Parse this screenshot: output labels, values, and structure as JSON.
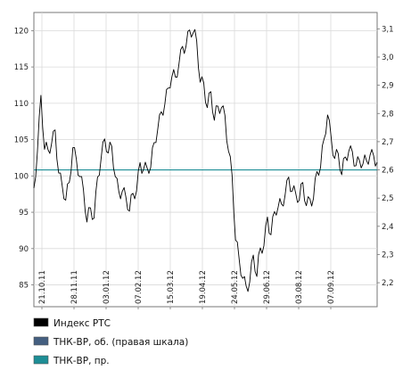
{
  "chart_data": {
    "type": "line",
    "title": "",
    "left_axis": {
      "min": 82,
      "max": 122.5,
      "ticks": [
        85,
        90,
        95,
        100,
        105,
        110,
        115,
        120
      ]
    },
    "right_axis": {
      "min": 2.115,
      "max": 3.158,
      "ticks": [
        "2,2",
        "2,3",
        "2,4",
        "2,5",
        "2,6",
        "2,7",
        "2,8",
        "2,9",
        "3,0",
        "3,1"
      ]
    },
    "x_tick_labels": [
      "21.10.11",
      "28.11.11",
      "03.01.12",
      "07.02.12",
      "15.03.12",
      "19.04.12",
      "24.05.12",
      "29.06.12",
      "03.08.12",
      "07.09.12"
    ],
    "grid": true,
    "legend_position": "bottom-left",
    "series": [
      {
        "name": "Индекс РТС",
        "color": "#000000",
        "axis": "left",
        "x_range": [
          "2011-10-21",
          "2012-10-19"
        ],
        "values": [
          97.5,
          104,
          110.5,
          104.5,
          103,
          105,
          105.5,
          101,
          98,
          97.5,
          98.5,
          104.5,
          101.5,
          100.5,
          97.5,
          94.5,
          95,
          94.8,
          99,
          103,
          104.5,
          104,
          103.5,
          100.5,
          97,
          98.5,
          96.5,
          96,
          97,
          98.5,
          101,
          101.5,
          100.5,
          102,
          104,
          107,
          108,
          110.5,
          111.5,
          114.5,
          113,
          116,
          117,
          118.5,
          119.5,
          120.5,
          118,
          113.5,
          112,
          110,
          111,
          108.5,
          109,
          110,
          107.5,
          104,
          99.5,
          92,
          88,
          86.5,
          84,
          86,
          88.5,
          87,
          89.5,
          91,
          93.5,
          92.5,
          94.5,
          96.5,
          95.5,
          98,
          99,
          98.5,
          97,
          97.5,
          98.5,
          96.5,
          96,
          97.5,
          100,
          102,
          104.5,
          109,
          104.5,
          103,
          102.5,
          101,
          102,
          104,
          102.5,
          102,
          101.5,
          102.5,
          101.5,
          103.5,
          102,
          102.5
        ]
      },
      {
        "name": "ТНК-BP, об. (правая шкала)",
        "color": "#445f80",
        "axis": "right",
        "values": []
      },
      {
        "name": "ТНК-BP, пр.",
        "color": "#1e8e96",
        "axis": "right",
        "constant_value": 2.6
      }
    ]
  }
}
